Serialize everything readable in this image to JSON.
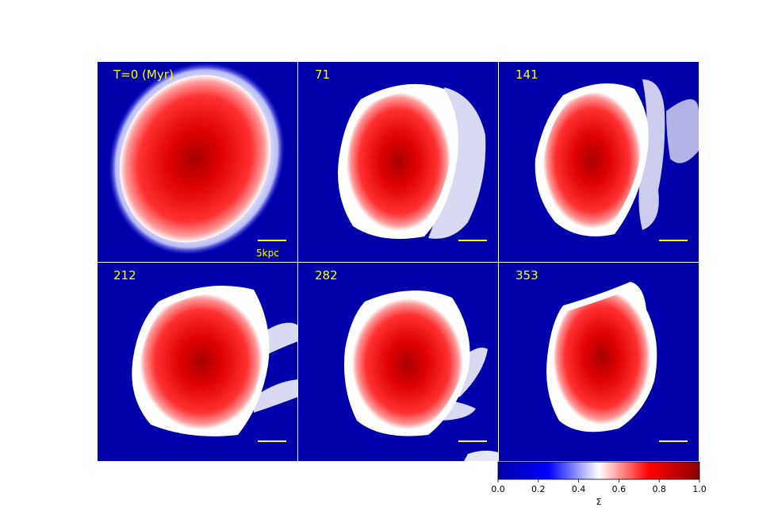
{
  "figure": {
    "panels": [
      {
        "label": "T=0 (Myr)",
        "scale_label": "5kpc"
      },
      {
        "label": "71",
        "scale_label": ""
      },
      {
        "label": "141",
        "scale_label": ""
      },
      {
        "label": "212",
        "scale_label": ""
      },
      {
        "label": "282",
        "scale_label": ""
      },
      {
        "label": "353",
        "scale_label": ""
      }
    ],
    "colorbar": {
      "ticks": [
        "0.0",
        "0.2",
        "0.4",
        "0.6",
        "0.8",
        "1.0"
      ],
      "label": "Σ",
      "colors": [
        "#0000aa",
        "#0000ff",
        "#ffffff",
        "#ff0000",
        "#8b0000"
      ]
    },
    "colors": {
      "background": "#0000aa",
      "galaxy_edge": "#ffffff",
      "galaxy_body": "#ff1a1a",
      "galaxy_core": "#b00000",
      "annotation": "#ffff00",
      "divider": "#ffffff"
    }
  }
}
